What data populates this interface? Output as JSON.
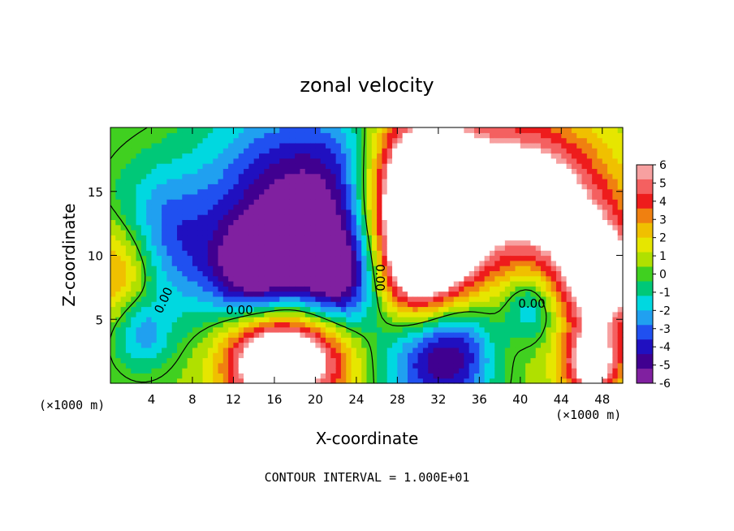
{
  "chart_data": {
    "type": "heatmap",
    "title": "zonal velocity",
    "xlabel": "X-coordinate",
    "ylabel": "Z-coordinate",
    "x_unit_left": "(×1000 m)",
    "x_unit_right": "(×1000 m)",
    "footer": "CONTOUR INTERVAL = 1.000E+01",
    "xlim": [
      0,
      50
    ],
    "ylim": [
      0,
      20
    ],
    "x_ticks": [
      "4",
      "8",
      "12",
      "16",
      "20",
      "24",
      "28",
      "32",
      "36",
      "40",
      "44",
      "48"
    ],
    "x_tick_values": [
      4,
      8,
      12,
      16,
      20,
      24,
      28,
      32,
      36,
      40,
      44,
      48
    ],
    "y_ticks": [
      "5",
      "10",
      "15"
    ],
    "y_tick_values": [
      5,
      10,
      15
    ],
    "colorbar": {
      "labels": [
        "6",
        "5",
        "4",
        "3",
        "2",
        "1",
        "0",
        "-1",
        "-2",
        "-3",
        "-4",
        "-5",
        "-6"
      ],
      "values": [
        6,
        5,
        4,
        3,
        2,
        1,
        0,
        -1,
        -2,
        -3,
        -4,
        -5,
        -6
      ],
      "colors": [
        "#f7a0a0",
        "#f46060",
        "#ee1c1c",
        "#f08010",
        "#f0c000",
        "#e6e600",
        "#b0e000",
        "#40d020",
        "#00c878",
        "#00d8e0",
        "#20a0f0",
        "#2050f0",
        "#2010c0",
        "#400090",
        "#8020a0"
      ]
    },
    "contour_labels": [
      "0.00",
      "0.00",
      "0.00",
      "0.00"
    ],
    "fields": [
      {
        "x": 5,
        "y": 11,
        "v": -4.5,
        "s": 4
      },
      {
        "x": 14,
        "y": 8.5,
        "v": -6,
        "s": 3
      },
      {
        "x": 20,
        "y": 12,
        "v": -4.5,
        "s": 5
      },
      {
        "x": 22,
        "y": 8,
        "v": -5.5,
        "s": 3
      },
      {
        "x": 15,
        "y": 16,
        "v": -3,
        "s": 5
      },
      {
        "x": 24,
        "y": 17,
        "v": -2.5,
        "s": 4
      },
      {
        "x": 30,
        "y": 16,
        "v": 8,
        "s": 4
      },
      {
        "x": 32,
        "y": 13,
        "v": 8,
        "s": 4
      },
      {
        "x": 30,
        "y": 9,
        "v": 6,
        "s": 3
      },
      {
        "x": 40,
        "y": 16,
        "v": 5,
        "s": 4
      },
      {
        "x": 45,
        "y": 13,
        "v": 4.5,
        "s": 4
      },
      {
        "x": 48,
        "y": 8,
        "v": 7,
        "s": 3
      },
      {
        "x": 1,
        "y": 9,
        "v": 4.5,
        "s": 3
      },
      {
        "x": 15,
        "y": 2,
        "v": 8,
        "s": 3
      },
      {
        "x": 20,
        "y": 2.5,
        "v": 6,
        "s": 3
      },
      {
        "x": 34,
        "y": 2.5,
        "v": -5,
        "s": 3
      },
      {
        "x": 30,
        "y": 1.5,
        "v": -3,
        "s": 3
      },
      {
        "x": 41,
        "y": 6,
        "v": -3.5,
        "s": 2
      },
      {
        "x": 47,
        "y": 1.5,
        "v": 7,
        "s": 2
      },
      {
        "x": 3,
        "y": 4,
        "v": -3,
        "s": 2
      },
      {
        "x": 38,
        "y": 4,
        "v": 1,
        "s": 3
      }
    ],
    "background_value": 0.5
  }
}
